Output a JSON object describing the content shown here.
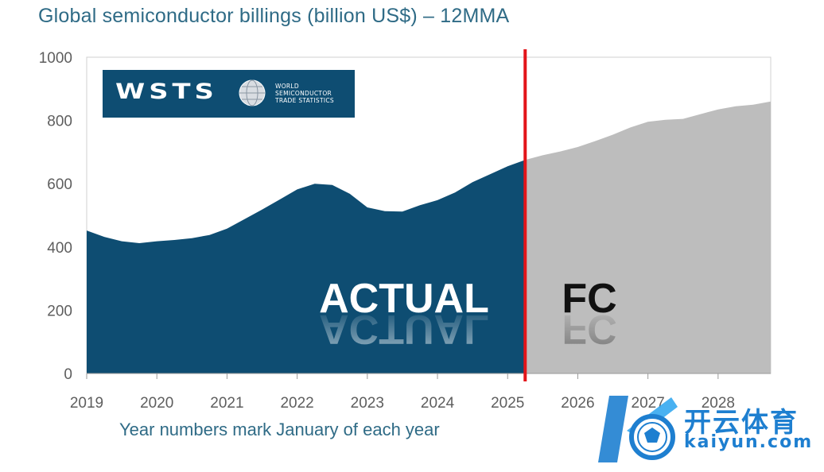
{
  "chart_data": {
    "type": "area",
    "title": "Global semiconductor billings (billion US$) – 12MMA",
    "note": "Year numbers mark January of each year",
    "ylim": [
      0,
      1000
    ],
    "yticks": [
      0,
      200,
      400,
      600,
      800,
      1000
    ],
    "xlim": [
      2019,
      2028.75
    ],
    "xticks": [
      "2019",
      "2020",
      "2021",
      "2022",
      "2023",
      "2024",
      "2025",
      "2026",
      "2027",
      "2028"
    ],
    "split_x": 2025.25,
    "series": [
      {
        "name": "ACTUAL",
        "color": "#0e4d72",
        "points": [
          [
            2019.0,
            452
          ],
          [
            2019.25,
            432
          ],
          [
            2019.5,
            418
          ],
          [
            2019.75,
            412
          ],
          [
            2020.0,
            418
          ],
          [
            2020.25,
            422
          ],
          [
            2020.5,
            428
          ],
          [
            2020.75,
            438
          ],
          [
            2021.0,
            458
          ],
          [
            2021.25,
            488
          ],
          [
            2021.5,
            518
          ],
          [
            2021.75,
            550
          ],
          [
            2022.0,
            582
          ],
          [
            2022.25,
            600
          ],
          [
            2022.5,
            596
          ],
          [
            2022.75,
            568
          ],
          [
            2023.0,
            525
          ],
          [
            2023.25,
            513
          ],
          [
            2023.5,
            512
          ],
          [
            2023.75,
            532
          ],
          [
            2024.0,
            548
          ],
          [
            2024.25,
            572
          ],
          [
            2024.5,
            605
          ],
          [
            2024.75,
            630
          ],
          [
            2025.0,
            655
          ],
          [
            2025.25,
            675
          ]
        ]
      },
      {
        "name": "FC",
        "color": "#bdbdbd",
        "points": [
          [
            2025.25,
            675
          ],
          [
            2025.5,
            690
          ],
          [
            2025.75,
            702
          ],
          [
            2026.0,
            716
          ],
          [
            2026.25,
            735
          ],
          [
            2026.5,
            755
          ],
          [
            2026.75,
            778
          ],
          [
            2027.0,
            796
          ],
          [
            2027.25,
            802
          ],
          [
            2027.5,
            805
          ],
          [
            2027.75,
            820
          ],
          [
            2028.0,
            835
          ],
          [
            2028.25,
            845
          ],
          [
            2028.5,
            850
          ],
          [
            2028.75,
            860
          ]
        ]
      }
    ],
    "split_line_color": "#e3151a",
    "grid": false
  },
  "logo": {
    "wordmark": "WSTS",
    "lines": [
      "WORLD",
      "SEMICONDUCTOR",
      "TRADE STATISTICS"
    ]
  },
  "watermark": {
    "brand_cn": "开云体育",
    "brand_latin": "kaiyun.com"
  }
}
